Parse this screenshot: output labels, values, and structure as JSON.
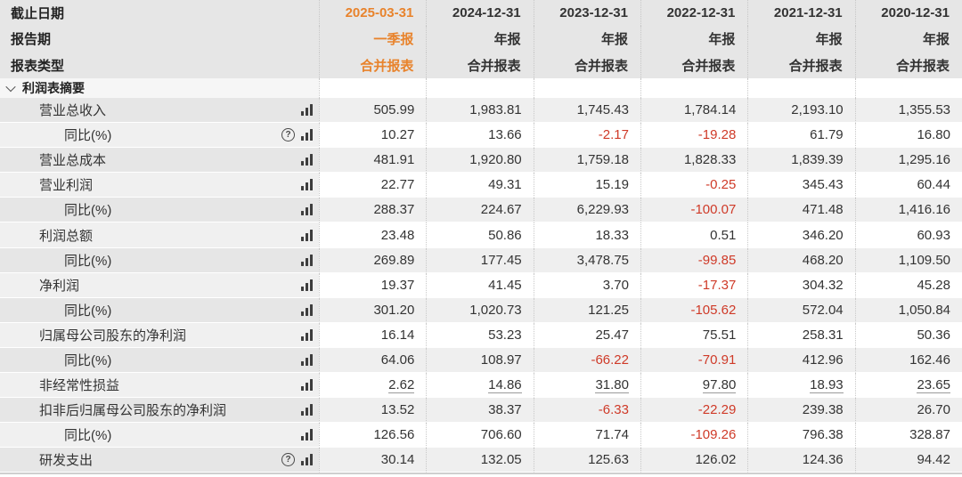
{
  "colors": {
    "accent_orange": "#e8832c",
    "negative_red": "#cf3a28",
    "header_bg": "#e6e6e6"
  },
  "header": {
    "rows": [
      {
        "label": "截止日期",
        "values": [
          "2025-03-31",
          "2024-12-31",
          "2023-12-31",
          "2022-12-31",
          "2021-12-31",
          "2020-12-31"
        ]
      },
      {
        "label": "报告期",
        "values": [
          "一季报",
          "年报",
          "年报",
          "年报",
          "年报",
          "年报"
        ]
      },
      {
        "label": "报表类型",
        "values": [
          "合并报表",
          "合并报表",
          "合并报表",
          "合并报表",
          "合并报表",
          "合并报表"
        ]
      }
    ]
  },
  "section": {
    "title": "利润表摘要",
    "chevron_icon": "chevron-down"
  },
  "icons": {
    "help": "question-mark-circle",
    "chart": "bar-chart"
  },
  "rows": [
    {
      "label": "营业总收入",
      "indent": 1,
      "help": false,
      "underline": false,
      "values": [
        "505.99",
        "1,983.81",
        "1,745.43",
        "1,784.14",
        "2,193.10",
        "1,355.53"
      ]
    },
    {
      "label": "同比(%)",
      "indent": 2,
      "help": true,
      "underline": false,
      "values": [
        "10.27",
        "13.66",
        "-2.17",
        "-19.28",
        "61.79",
        "16.80"
      ]
    },
    {
      "label": "营业总成本",
      "indent": 1,
      "help": false,
      "underline": false,
      "values": [
        "481.91",
        "1,920.80",
        "1,759.18",
        "1,828.33",
        "1,839.39",
        "1,295.16"
      ]
    },
    {
      "label": "营业利润",
      "indent": 1,
      "help": false,
      "underline": false,
      "values": [
        "22.77",
        "49.31",
        "15.19",
        "-0.25",
        "345.43",
        "60.44"
      ]
    },
    {
      "label": "同比(%)",
      "indent": 2,
      "help": false,
      "underline": false,
      "values": [
        "288.37",
        "224.67",
        "6,229.93",
        "-100.07",
        "471.48",
        "1,416.16"
      ]
    },
    {
      "label": "利润总额",
      "indent": 1,
      "help": false,
      "underline": false,
      "values": [
        "23.48",
        "50.86",
        "18.33",
        "0.51",
        "346.20",
        "60.93"
      ]
    },
    {
      "label": "同比(%)",
      "indent": 2,
      "help": false,
      "underline": false,
      "values": [
        "269.89",
        "177.45",
        "3,478.75",
        "-99.85",
        "468.20",
        "1,109.50"
      ]
    },
    {
      "label": "净利润",
      "indent": 1,
      "help": false,
      "underline": false,
      "values": [
        "19.37",
        "41.45",
        "3.70",
        "-17.37",
        "304.32",
        "45.28"
      ]
    },
    {
      "label": "同比(%)",
      "indent": 2,
      "help": false,
      "underline": false,
      "values": [
        "301.20",
        "1,020.73",
        "121.25",
        "-105.62",
        "572.04",
        "1,050.84"
      ]
    },
    {
      "label": "归属母公司股东的净利润",
      "indent": 1,
      "help": false,
      "underline": false,
      "values": [
        "16.14",
        "53.23",
        "25.47",
        "75.51",
        "258.31",
        "50.36"
      ]
    },
    {
      "label": "同比(%)",
      "indent": 2,
      "help": false,
      "underline": false,
      "values": [
        "64.06",
        "108.97",
        "-66.22",
        "-70.91",
        "412.96",
        "162.46"
      ]
    },
    {
      "label": "非经常性损益",
      "indent": 1,
      "help": false,
      "underline": true,
      "values": [
        "2.62",
        "14.86",
        "31.80",
        "97.80",
        "18.93",
        "23.65"
      ]
    },
    {
      "label": "扣非后归属母公司股东的净利润",
      "indent": 1,
      "help": false,
      "underline": false,
      "values": [
        "13.52",
        "38.37",
        "-6.33",
        "-22.29",
        "239.38",
        "26.70"
      ]
    },
    {
      "label": "同比(%)",
      "indent": 2,
      "help": false,
      "underline": false,
      "values": [
        "126.56",
        "706.60",
        "71.74",
        "-109.26",
        "796.38",
        "328.87"
      ]
    },
    {
      "label": "研发支出",
      "indent": 1,
      "help": true,
      "underline": false,
      "values": [
        "30.14",
        "132.05",
        "125.63",
        "126.02",
        "124.36",
        "94.42"
      ]
    }
  ]
}
